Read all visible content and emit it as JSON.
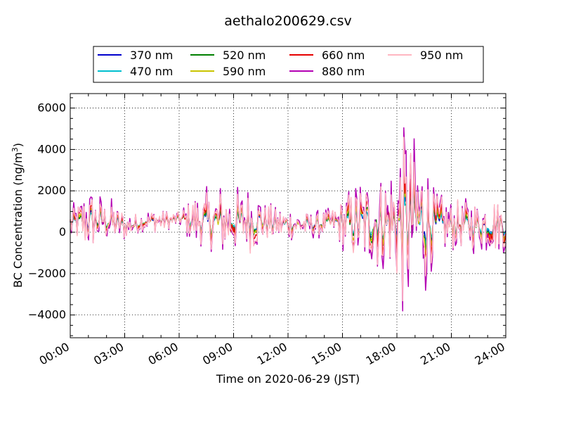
{
  "chart_data": {
    "type": "line",
    "title": "aethalo200629.csv",
    "xlabel": "Time on 2020-06-29 (JST)",
    "ylabel_main": "BC Concentration (ng/m",
    "ylabel_sup": "3",
    "ylabel_tail": ")",
    "xlim": [
      "00:00",
      "24:00"
    ],
    "ylim": [
      -5100,
      6700
    ],
    "xticks": [
      "00:00",
      "03:00",
      "06:00",
      "09:00",
      "12:00",
      "15:00",
      "18:00",
      "21:00",
      "24:00"
    ],
    "yticks": [
      -4000,
      -2000,
      0,
      2000,
      4000,
      6000
    ],
    "yticklabels": [
      "−4000",
      "−2000",
      "0",
      "2000",
      "4000",
      "6000"
    ],
    "grid": true,
    "legend_position": "top-center",
    "series": [
      {
        "name": "370 nm",
        "color": "#0000cc"
      },
      {
        "name": "470 nm",
        "color": "#00bfcf"
      },
      {
        "name": "520 nm",
        "color": "#007f00"
      },
      {
        "name": "590 nm",
        "color": "#c9c400"
      },
      {
        "name": "660 nm",
        "color": "#e60000"
      },
      {
        "name": "880 nm",
        "color": "#b300b3"
      },
      {
        "name": "950 nm",
        "color": "#ffb6c1"
      }
    ],
    "envelope": {
      "hours": [
        0,
        0.5,
        1,
        1.5,
        2,
        2.5,
        3,
        3.5,
        4,
        4.5,
        5,
        5.5,
        6,
        6.5,
        7,
        7.5,
        8,
        8.5,
        9,
        9.5,
        10,
        10.5,
        11,
        11.5,
        12,
        12.5,
        13,
        13.5,
        14,
        14.5,
        15,
        15.5,
        16,
        16.5,
        17,
        17.5,
        18,
        18.5,
        19,
        19.5,
        20,
        20.5,
        21,
        21.5,
        22,
        22.5,
        23,
        23.5,
        24
      ],
      "amplitude": [
        700,
        1000,
        1300,
        1100,
        900,
        900,
        600,
        500,
        400,
        500,
        500,
        400,
        300,
        800,
        1100,
        1300,
        1500,
        1500,
        1400,
        1300,
        1400,
        1100,
        800,
        700,
        650,
        600,
        600,
        550,
        550,
        600,
        1200,
        1600,
        1800,
        1900,
        2000,
        2100,
        3000,
        4000,
        3500,
        3000,
        1600,
        1200,
        1100,
        1100,
        1100,
        1100,
        1200,
        1200,
        1200
      ],
      "baseline": [
        400,
        500,
        550,
        550,
        550,
        450,
        300,
        350,
        500,
        550,
        550,
        550,
        650,
        600,
        550,
        500,
        500,
        500,
        500,
        550,
        550,
        550,
        450,
        400,
        400,
        350,
        350,
        350,
        400,
        500,
        450,
        450,
        450,
        450,
        450,
        450,
        500,
        550,
        550,
        500,
        400,
        350,
        350,
        350,
        350,
        350,
        350,
        350,
        350
      ]
    }
  }
}
